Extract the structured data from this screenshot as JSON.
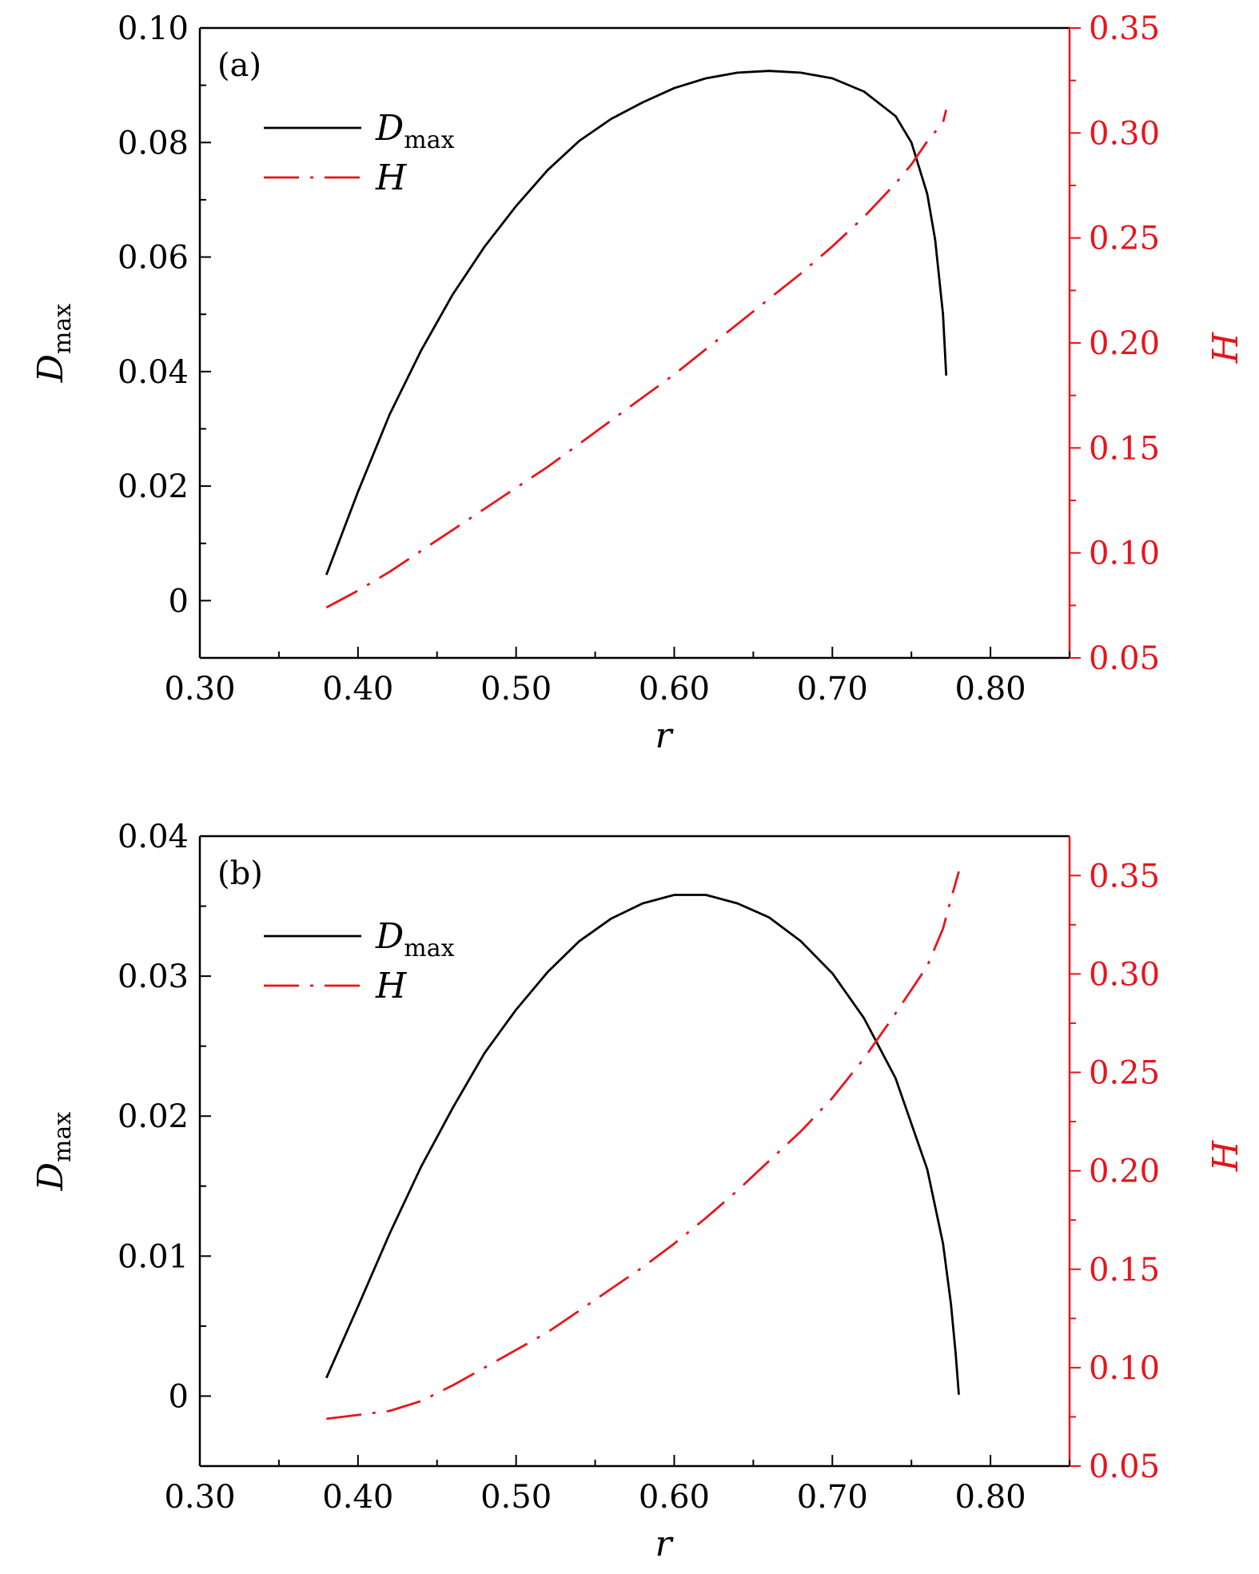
{
  "colors": {
    "left_axis": "#000000",
    "right_axis": "#e8141b",
    "dmax_line": "#000000",
    "h_line": "#e8141b"
  },
  "chart_data": [
    {
      "type": "line",
      "panel_label": "(a)",
      "xlabel": "r",
      "ylabel_main": "D",
      "ylabel_sub": "max",
      "y2label": "H",
      "xlim": [
        0.3,
        0.85
      ],
      "ylim": [
        -0.01,
        0.1
      ],
      "y2lim": [
        0.05,
        0.35
      ],
      "xticks": [
        "0.30",
        "0.40",
        "0.50",
        "0.60",
        "0.70",
        "0.80"
      ],
      "yticks": [
        "0",
        "0.02",
        "0.04",
        "0.06",
        "0.08",
        "0.10"
      ],
      "y2ticks": [
        "0.05",
        "0.10",
        "0.15",
        "0.20",
        "0.25",
        "0.30",
        "0.35"
      ],
      "legend": {
        "placement": "upper-left",
        "entries": [
          {
            "main": "D",
            "sub": "max",
            "style": "solid"
          },
          {
            "main": "H",
            "sub": "",
            "style": "dash-dot"
          }
        ]
      },
      "series": [
        {
          "name": "Dmax",
          "axis": "left",
          "style": "solid",
          "x": [
            0.38,
            0.4,
            0.42,
            0.44,
            0.46,
            0.48,
            0.5,
            0.52,
            0.54,
            0.56,
            0.58,
            0.6,
            0.62,
            0.64,
            0.66,
            0.68,
            0.7,
            0.72,
            0.74,
            0.75,
            0.76,
            0.765,
            0.77,
            0.772
          ],
          "y": [
            0.0045,
            0.019,
            0.0325,
            0.0437,
            0.0535,
            0.0618,
            0.0689,
            0.0752,
            0.0803,
            0.0841,
            0.087,
            0.0895,
            0.0912,
            0.0922,
            0.0925,
            0.0922,
            0.0912,
            0.0889,
            0.0846,
            0.08,
            0.071,
            0.063,
            0.05,
            0.0393
          ]
        },
        {
          "name": "H",
          "axis": "right",
          "style": "dash-dot",
          "x": [
            0.38,
            0.4,
            0.42,
            0.44,
            0.46,
            0.48,
            0.5,
            0.52,
            0.54,
            0.56,
            0.58,
            0.6,
            0.62,
            0.64,
            0.66,
            0.68,
            0.7,
            0.72,
            0.74,
            0.75,
            0.76,
            0.77,
            0.772
          ],
          "y": [
            0.074,
            0.082,
            0.091,
            0.101,
            0.111,
            0.121,
            0.131,
            0.141,
            0.152,
            0.163,
            0.174,
            0.185,
            0.197,
            0.209,
            0.221,
            0.233,
            0.246,
            0.26,
            0.276,
            0.285,
            0.296,
            0.305,
            0.311
          ]
        }
      ]
    },
    {
      "type": "line",
      "panel_label": "(b)",
      "xlabel": "r",
      "ylabel_main": "D",
      "ylabel_sub": "max",
      "y2label": "H",
      "xlim": [
        0.3,
        0.85
      ],
      "ylim": [
        -0.005,
        0.04
      ],
      "y2lim": [
        0.05,
        0.37
      ],
      "xticks": [
        "0.30",
        "0.40",
        "0.50",
        "0.60",
        "0.70",
        "0.80"
      ],
      "yticks": [
        "0",
        "0.01",
        "0.02",
        "0.03",
        "0.04"
      ],
      "y2ticks": [
        "0.05",
        "0.10",
        "0.15",
        "0.20",
        "0.25",
        "0.30",
        "0.35"
      ],
      "legend": {
        "placement": "upper-left",
        "entries": [
          {
            "main": "D",
            "sub": "max",
            "style": "solid"
          },
          {
            "main": "H",
            "sub": "",
            "style": "dash-dot"
          }
        ]
      },
      "series": [
        {
          "name": "Dmax",
          "axis": "left",
          "style": "solid",
          "x": [
            0.38,
            0.4,
            0.42,
            0.44,
            0.46,
            0.48,
            0.5,
            0.52,
            0.54,
            0.56,
            0.58,
            0.6,
            0.62,
            0.64,
            0.66,
            0.68,
            0.7,
            0.72,
            0.74,
            0.76,
            0.77,
            0.775,
            0.778,
            0.78
          ],
          "y": [
            0.0013,
            0.0064,
            0.0116,
            0.0164,
            0.0206,
            0.0245,
            0.0276,
            0.0303,
            0.0325,
            0.0341,
            0.0352,
            0.0358,
            0.0358,
            0.0352,
            0.0342,
            0.0325,
            0.0302,
            0.027,
            0.0227,
            0.0162,
            0.0109,
            0.0066,
            0.003,
            0.0001
          ]
        },
        {
          "name": "H",
          "axis": "right",
          "style": "dash-dot",
          "x": [
            0.38,
            0.4,
            0.42,
            0.44,
            0.46,
            0.48,
            0.5,
            0.52,
            0.54,
            0.56,
            0.58,
            0.6,
            0.62,
            0.64,
            0.66,
            0.68,
            0.7,
            0.72,
            0.74,
            0.76,
            0.77,
            0.775,
            0.78
          ],
          "y": [
            0.074,
            0.076,
            0.078,
            0.083,
            0.091,
            0.1,
            0.109,
            0.118,
            0.129,
            0.14,
            0.151,
            0.163,
            0.176,
            0.19,
            0.205,
            0.22,
            0.237,
            0.257,
            0.28,
            0.304,
            0.323,
            0.338,
            0.352
          ]
        }
      ]
    }
  ]
}
